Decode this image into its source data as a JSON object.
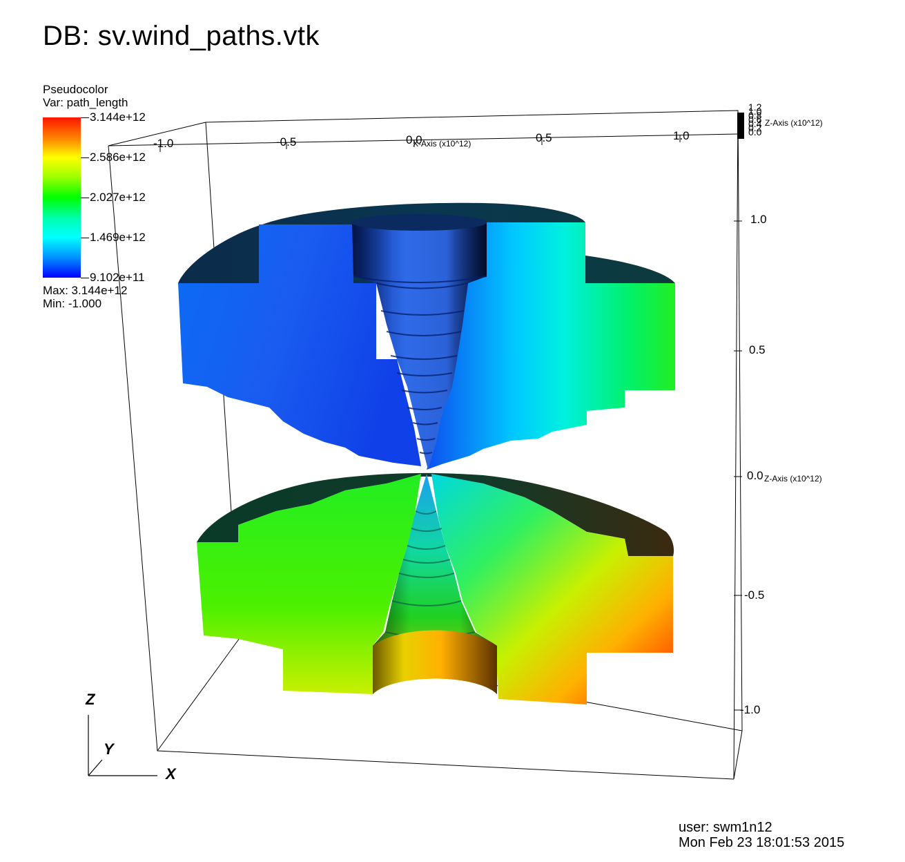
{
  "title": "DB: sv.wind_paths.vtk",
  "legend": {
    "plot_type": "Pseudocolor",
    "variable": "Var: path_length",
    "tick_labels": [
      "3.144e+12",
      "2.586e+12",
      "2.027e+12",
      "1.469e+12",
      "9.102e+11"
    ],
    "max_label": "Max:  3.144e+12",
    "min_label": "Min: -1.000",
    "colors": [
      "#ff1500",
      "#ffff00",
      "#00ff00",
      "#00ffff",
      "#0000ff"
    ]
  },
  "axes": {
    "x_ticks": [
      "-1.0",
      "-0.5",
      "0.0",
      "0.5",
      "1.0"
    ],
    "x_title": "X-Axis (x10^12)",
    "z_ticks": [
      "1.0",
      "0.5",
      "0.0",
      "-0.5",
      "-1.0"
    ],
    "z_title": "Z-Axis (x10^12)",
    "corner_ticks": [
      "1.2",
      "1.0",
      "0.8",
      "0.6",
      "0.4",
      "0.2",
      "0.0"
    ],
    "corner_title": "Z-Axis (x10^12)"
  },
  "triad": {
    "z": "Z",
    "y": "Y",
    "x": "X"
  },
  "footer": {
    "user": "user: swm1n12",
    "timestamp": "Mon Feb 23 18:01:53 2015"
  }
}
